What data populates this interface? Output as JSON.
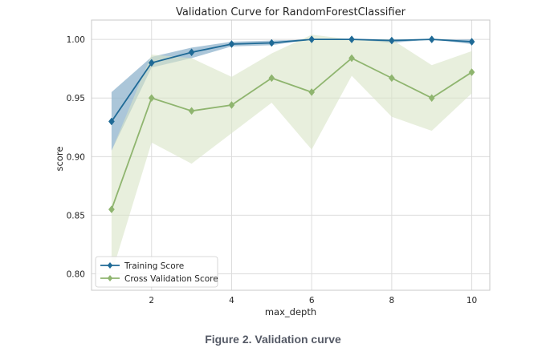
{
  "chart_data": {
    "type": "line",
    "title": "Validation Curve for RandomForestClassifier",
    "xlabel": "max_depth",
    "ylabel": "score",
    "xlim": [
      0.5,
      10.45
    ],
    "ylim": [
      0.786,
      1.0165
    ],
    "xticks": [
      2,
      4,
      6,
      8,
      10
    ],
    "yticks": [
      0.8,
      0.85,
      0.9,
      0.95,
      1.0
    ],
    "ytick_labels": [
      "0.80",
      "0.85",
      "0.90",
      "0.95",
      "1.00"
    ],
    "grid": true,
    "legend_position": "lower-left",
    "x": [
      1,
      2,
      3,
      4,
      5,
      6,
      7,
      8,
      9,
      10
    ],
    "series": [
      {
        "name": "Training Score",
        "color": "#1f6a96",
        "band_color": "#8fb3cc",
        "marker": "diamond",
        "values": [
          0.93,
          0.98,
          0.989,
          0.996,
          0.997,
          1.0,
          1.0,
          0.999,
          1.0,
          0.998
        ],
        "lower": [
          0.905,
          0.976,
          0.984,
          0.994,
          0.995,
          1.0,
          1.0,
          0.997,
          1.0,
          0.996
        ],
        "upper": [
          0.955,
          0.985,
          0.993,
          0.998,
          0.999,
          1.0,
          1.0,
          1.0,
          1.0,
          1.0
        ]
      },
      {
        "name": "Cross Validation Score",
        "color": "#8fb56f",
        "band_color": "#d8e4c6",
        "marker": "diamond",
        "values": [
          0.855,
          0.95,
          0.939,
          0.944,
          0.967,
          0.955,
          0.984,
          0.967,
          0.95,
          0.972
        ],
        "lower": [
          0.8,
          0.912,
          0.894,
          0.92,
          0.946,
          0.906,
          0.969,
          0.934,
          0.922,
          0.954
        ],
        "upper": [
          0.905,
          0.987,
          0.984,
          0.968,
          0.988,
          1.004,
          1.0,
          1.0,
          0.978,
          0.99
        ]
      }
    ]
  },
  "caption": "Figure 2. Validation curve"
}
